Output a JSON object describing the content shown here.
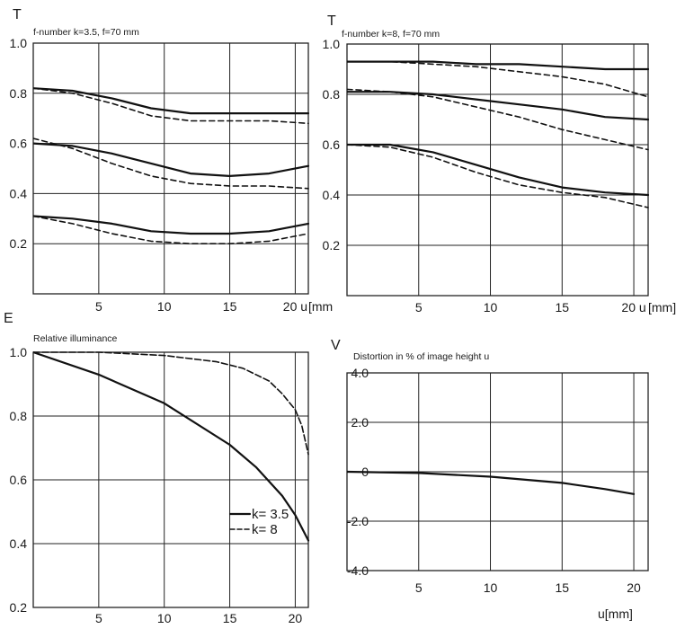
{
  "chart_data": [
    {
      "type": "line",
      "letter": "T",
      "title": "f-number k=3.5, f=70 mm",
      "xlim": [
        0,
        21
      ],
      "ylim": [
        0,
        1.0
      ],
      "xticks": [
        5,
        10,
        15,
        20
      ],
      "yticks": [
        0.2,
        0.4,
        0.6,
        0.8,
        1.0
      ],
      "ytick_labels": [
        "0.2",
        "0.4",
        "0.6",
        "0.8",
        "1.0"
      ],
      "xtick_labels": [
        "5",
        "10",
        "15",
        "20 u"
      ],
      "xunit": "[mm",
      "grid": true,
      "series": [
        {
          "style": "solid",
          "x": [
            0,
            3,
            6,
            9,
            12,
            15,
            18,
            21
          ],
          "y": [
            0.82,
            0.81,
            0.78,
            0.74,
            0.72,
            0.72,
            0.72,
            0.72
          ]
        },
        {
          "style": "dashed",
          "x": [
            0,
            3,
            6,
            9,
            12,
            15,
            18,
            21
          ],
          "y": [
            0.82,
            0.8,
            0.76,
            0.71,
            0.69,
            0.69,
            0.69,
            0.68
          ]
        },
        {
          "style": "solid",
          "x": [
            0,
            3,
            6,
            9,
            12,
            15,
            18,
            21
          ],
          "y": [
            0.6,
            0.59,
            0.56,
            0.52,
            0.48,
            0.47,
            0.48,
            0.51
          ]
        },
        {
          "style": "dashed",
          "x": [
            0,
            3,
            6,
            9,
            12,
            15,
            18,
            21
          ],
          "y": [
            0.62,
            0.58,
            0.52,
            0.47,
            0.44,
            0.43,
            0.43,
            0.42
          ]
        },
        {
          "style": "solid",
          "x": [
            0,
            3,
            6,
            9,
            12,
            15,
            18,
            21
          ],
          "y": [
            0.31,
            0.3,
            0.28,
            0.25,
            0.24,
            0.24,
            0.25,
            0.28
          ]
        },
        {
          "style": "dashed",
          "x": [
            0,
            3,
            6,
            9,
            12,
            15,
            18,
            21
          ],
          "y": [
            0.31,
            0.28,
            0.24,
            0.21,
            0.2,
            0.2,
            0.21,
            0.24
          ]
        }
      ]
    },
    {
      "type": "line",
      "letter": "T",
      "title": "f-number k=8, f=70 mm",
      "xlim": [
        0,
        21
      ],
      "ylim": [
        0,
        1.0
      ],
      "xticks": [
        5,
        10,
        15,
        20
      ],
      "yticks": [
        0.2,
        0.4,
        0.6,
        0.8,
        1.0
      ],
      "ytick_labels": [
        "0.2",
        "0.4",
        "0.6",
        "0.8",
        "1.0"
      ],
      "xtick_labels": [
        "5",
        "10",
        "15",
        "20 u"
      ],
      "xunit": "[mm]",
      "grid": true,
      "series": [
        {
          "style": "solid",
          "x": [
            0,
            3,
            6,
            9,
            12,
            15,
            18,
            21
          ],
          "y": [
            0.93,
            0.93,
            0.93,
            0.92,
            0.92,
            0.91,
            0.9,
            0.9
          ]
        },
        {
          "style": "dashed",
          "x": [
            0,
            3,
            6,
            9,
            12,
            15,
            18,
            21
          ],
          "y": [
            0.93,
            0.93,
            0.92,
            0.91,
            0.89,
            0.87,
            0.84,
            0.79
          ]
        },
        {
          "style": "solid",
          "x": [
            0,
            3,
            6,
            9,
            12,
            15,
            18,
            21
          ],
          "y": [
            0.81,
            0.81,
            0.8,
            0.78,
            0.76,
            0.74,
            0.71,
            0.7
          ]
        },
        {
          "style": "dashed",
          "x": [
            0,
            3,
            6,
            9,
            12,
            15,
            18,
            21
          ],
          "y": [
            0.82,
            0.81,
            0.79,
            0.75,
            0.71,
            0.66,
            0.62,
            0.58
          ]
        },
        {
          "style": "solid",
          "x": [
            0,
            3,
            6,
            9,
            12,
            15,
            18,
            21
          ],
          "y": [
            0.6,
            0.6,
            0.57,
            0.52,
            0.47,
            0.43,
            0.41,
            0.4
          ]
        },
        {
          "style": "dashed",
          "x": [
            0,
            3,
            6,
            9,
            12,
            15,
            18,
            21
          ],
          "y": [
            0.6,
            0.59,
            0.55,
            0.49,
            0.44,
            0.41,
            0.39,
            0.35
          ]
        }
      ]
    },
    {
      "type": "line",
      "letter": "E",
      "title": "Relative illuminance",
      "xlim": [
        0,
        21
      ],
      "ylim": [
        0.2,
        1.0
      ],
      "xticks": [
        5,
        10,
        15,
        20
      ],
      "yticks": [
        0.2,
        0.4,
        0.6,
        0.8,
        1.0
      ],
      "ytick_labels": [
        "0.2",
        "0.4",
        "0.6",
        "0.8",
        "1.0"
      ],
      "xtick_labels": [
        "5",
        "10",
        "15",
        "20"
      ],
      "xunit": "",
      "grid": true,
      "legend_position": "lower-right",
      "legend": [
        {
          "label": "k= 3.5",
          "style": "solid"
        },
        {
          "label": "k= 8",
          "style": "dashed"
        }
      ],
      "series": [
        {
          "style": "solid",
          "x": [
            0,
            5,
            10,
            15,
            17,
            19,
            20,
            21
          ],
          "y": [
            1.0,
            0.93,
            0.84,
            0.71,
            0.64,
            0.55,
            0.49,
            0.41
          ]
        },
        {
          "style": "dashed",
          "x": [
            0,
            5,
            10,
            14,
            16,
            18,
            19,
            20,
            20.5,
            21
          ],
          "y": [
            1.0,
            1.0,
            0.99,
            0.97,
            0.95,
            0.91,
            0.87,
            0.82,
            0.77,
            0.68
          ]
        }
      ]
    },
    {
      "type": "line",
      "letter": "V",
      "title": "Distortion in % of image height u",
      "xlim": [
        0,
        21
      ],
      "ylim": [
        -4.0,
        4.0
      ],
      "xticks": [
        5,
        10,
        15,
        20
      ],
      "yticks": [
        -4.0,
        -2.0,
        0,
        2.0,
        4.0
      ],
      "ytick_labels": [
        "-4.0",
        "-2.0",
        "0",
        "2.0",
        "4.0"
      ],
      "xtick_labels": [
        "5",
        "10",
        "15",
        "20"
      ],
      "xunit": "u[mm]",
      "grid": true,
      "series": [
        {
          "style": "solid",
          "x": [
            0,
            5,
            10,
            15,
            18,
            20
          ],
          "y": [
            0.0,
            -0.05,
            -0.2,
            -0.45,
            -0.7,
            -0.9
          ]
        }
      ]
    }
  ]
}
